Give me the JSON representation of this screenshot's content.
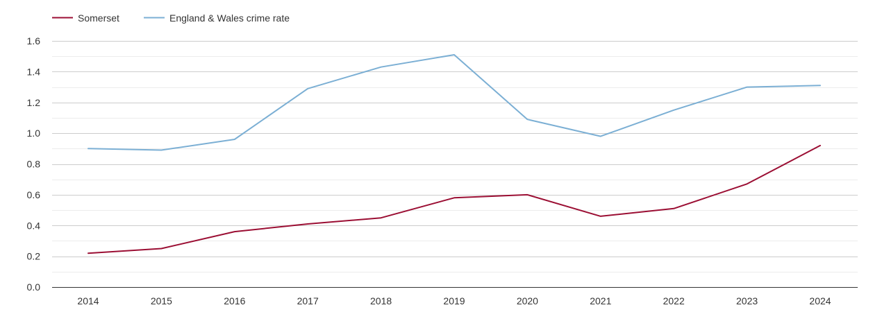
{
  "chart_data": {
    "type": "line",
    "title": "",
    "xlabel": "",
    "ylabel": "",
    "categories": [
      "2014",
      "2015",
      "2016",
      "2017",
      "2018",
      "2019",
      "2020",
      "2021",
      "2022",
      "2023",
      "2024"
    ],
    "ylim": [
      0,
      1.6
    ],
    "yticks": [
      "0.0",
      "0.2",
      "0.4",
      "0.6",
      "0.8",
      "1.0",
      "1.2",
      "1.4",
      "1.6"
    ],
    "grid": true,
    "legend_position": "top-left",
    "series": [
      {
        "name": "Somerset",
        "color": "#9b0e33",
        "values": [
          0.22,
          0.25,
          0.36,
          0.41,
          0.45,
          0.58,
          0.6,
          0.46,
          0.51,
          0.67,
          0.92
        ]
      },
      {
        "name": "England & Wales crime rate",
        "color": "#7bafd4",
        "values": [
          0.9,
          0.89,
          0.96,
          1.29,
          1.43,
          1.51,
          1.09,
          0.98,
          1.15,
          1.3,
          1.31
        ]
      }
    ]
  }
}
